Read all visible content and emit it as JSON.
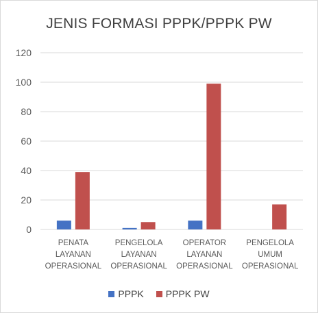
{
  "chart_data": {
    "type": "bar",
    "title": "JENIS FORMASI PPPK/PPPK PW",
    "xlabel": "",
    "ylabel": "",
    "ylim": [
      0,
      120
    ],
    "yticks": [
      "0",
      "20",
      "40",
      "60",
      "80",
      "100",
      "120"
    ],
    "categories": [
      [
        "PENATA",
        "LAYANAN",
        "OPERASIONAL"
      ],
      [
        "PENGELOLA",
        "LAYANAN",
        "OPERASIONAL"
      ],
      [
        "OPERATOR",
        "LAYANAN",
        "OPERASIONAL"
      ],
      [
        "PENGELOLA",
        "UMUM",
        "OPERASIONAL"
      ]
    ],
    "series": [
      {
        "name": "PPPK",
        "color": "#4472c4",
        "values": [
          6,
          1,
          6,
          0
        ]
      },
      {
        "name": "PPPK PW",
        "color": "#c0504d",
        "values": [
          39,
          5,
          99,
          17
        ]
      }
    ],
    "grid": true,
    "legend_position": "bottom"
  }
}
